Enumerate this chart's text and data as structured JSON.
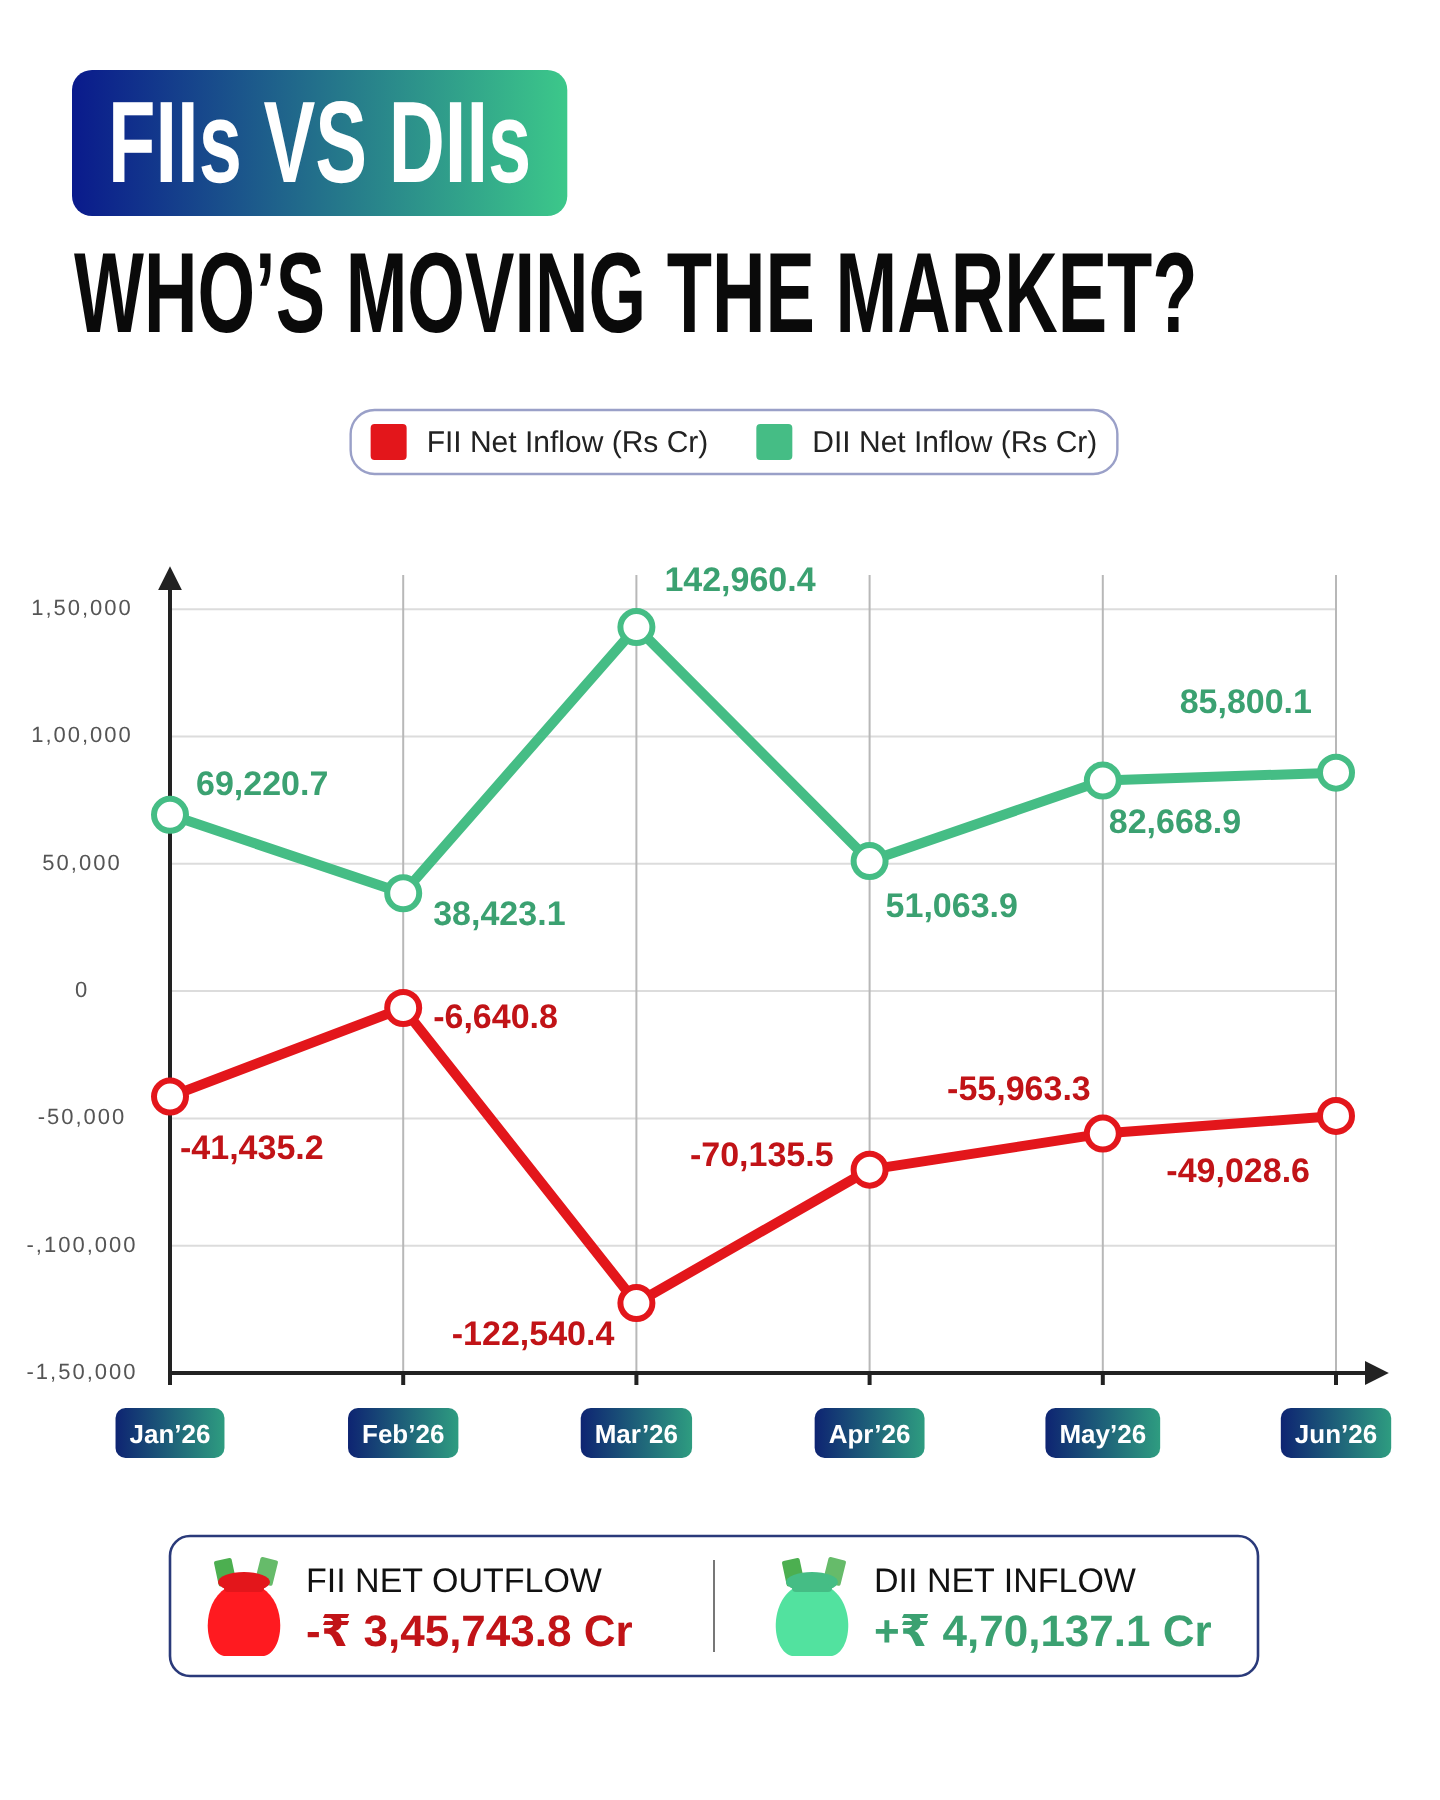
{
  "chart_data": {
    "type": "line",
    "title": "FIIs VS DIIs",
    "subtitle": "WHO’S MOVING THE MARKET?",
    "categories": [
      "Jan’26",
      "Feb’26",
      "Mar’26",
      "Apr’26",
      "May’26",
      "Jun’26"
    ],
    "series": [
      {
        "name": "FII Net Inflow (Rs Cr)",
        "color": "#e3161b",
        "values": [
          -41435.2,
          -6640.8,
          -122540.4,
          -70135.5,
          -55963.3,
          -49028.6
        ],
        "value_labels": [
          "-41,435.2",
          "-6,640.8",
          "-122,540.4",
          "-70,135.5",
          "-55,963.3",
          "-49,028.6"
        ]
      },
      {
        "name": "DII Net Inflow (Rs Cr)",
        "color": "#45bd85",
        "values": [
          69220.7,
          38423.1,
          142960.4,
          51063.9,
          82668.9,
          85800.1
        ],
        "value_labels": [
          "69,220.7",
          "38,423.1",
          "142,960.4",
          "51,063.9",
          "82,668.9",
          "85,800.1"
        ]
      }
    ],
    "ylim": [
      -150000,
      165000
    ],
    "yticks": [
      {
        "value": -150000,
        "label": "-1,50,000"
      },
      {
        "value": -100000,
        "label": "-,100,000"
      },
      {
        "value": -50000,
        "label": "-50,000"
      },
      0,
      {
        "value": 50000,
        "label": "50,000"
      },
      {
        "value": 100000,
        "label": "1,00,000"
      },
      {
        "value": 150000,
        "label": "1,50,000"
      }
    ],
    "grid": true,
    "legend": "top",
    "marker": "circle",
    "line_style": "solid",
    "annotations": [
      "FII NET OUTFLOW",
      "-₹ 3,45,743.8 Cr",
      "DII NET INFLOW",
      "+₹ 4,70,137.1 Cr"
    ]
  }
}
